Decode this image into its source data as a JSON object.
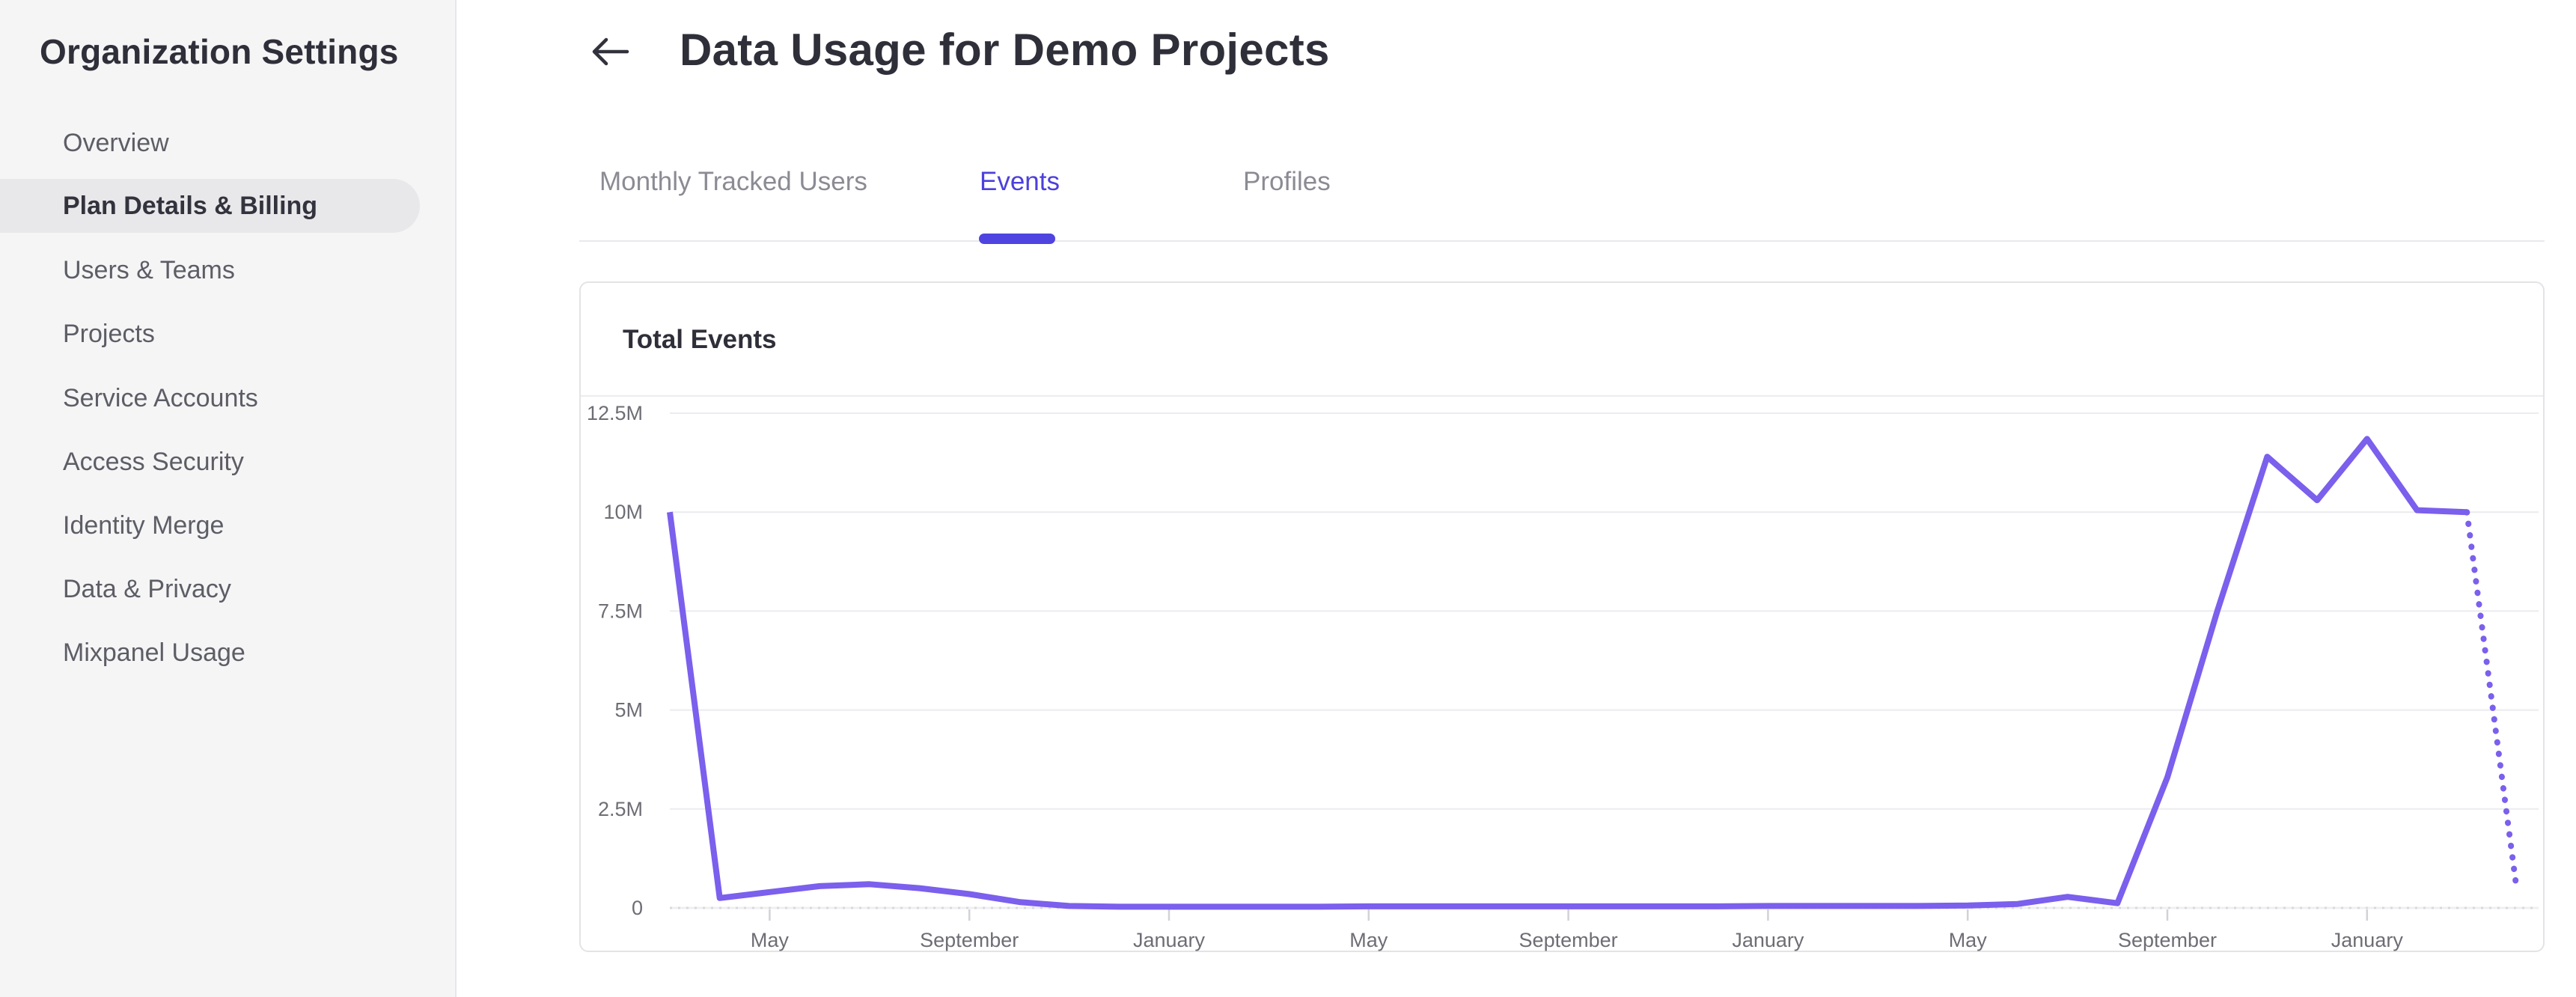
{
  "sidebar": {
    "title": "Organization Settings",
    "items": [
      {
        "label": "Overview",
        "active": false
      },
      {
        "label": "Plan Details & Billing",
        "active": true
      },
      {
        "label": "Users & Teams",
        "active": false
      },
      {
        "label": "Projects",
        "active": false
      },
      {
        "label": "Service Accounts",
        "active": false
      },
      {
        "label": "Access Security",
        "active": false
      },
      {
        "label": "Identity Merge",
        "active": false
      },
      {
        "label": "Data & Privacy",
        "active": false
      },
      {
        "label": "Mixpanel Usage",
        "active": false
      }
    ]
  },
  "header": {
    "title": "Data Usage for Demo Projects"
  },
  "tabs": {
    "items": [
      {
        "label": "Monthly Tracked Users",
        "active": false
      },
      {
        "label": "Events",
        "active": true
      },
      {
        "label": "Profiles",
        "active": false
      }
    ]
  },
  "card": {
    "title": "Total Events"
  },
  "colors": {
    "line": "#7b5fed",
    "accent": "#4f44e0",
    "grid": "#ececef",
    "axis": "#d9d9dd",
    "tick": "#d2d2d7",
    "axis_label": "#6d6d75"
  },
  "chart_data": {
    "type": "line",
    "title": "Total Events",
    "xlabel": "",
    "ylabel": "",
    "legend": "none",
    "grid": "horizontal",
    "ylim_millions": [
      0,
      12.5
    ],
    "y_tick_labels": [
      "12.5M",
      "10M",
      "7.5M",
      "5M",
      "2.5M",
      "0"
    ],
    "y_tick_values_millions": [
      12.5,
      10,
      7.5,
      5,
      2.5,
      0
    ],
    "x_tick_labels": [
      "May",
      "September",
      "January",
      "May",
      "September",
      "January",
      "May",
      "September",
      "January"
    ],
    "x_tick_month_indices": [
      2,
      6,
      10,
      14,
      18,
      22,
      26,
      30,
      34
    ],
    "x_granularity": "monthly, first point is March of year 1",
    "series": [
      {
        "name": "Total Events",
        "values_millions": [
          10,
          0.25,
          0.4,
          0.55,
          0.6,
          0.5,
          0.35,
          0.15,
          0.05,
          0.03,
          0.03,
          0.03,
          0.03,
          0.03,
          0.04,
          0.04,
          0.04,
          0.04,
          0.04,
          0.04,
          0.04,
          0.04,
          0.05,
          0.05,
          0.05,
          0.05,
          0.06,
          0.1,
          0.28,
          0.12,
          3.3,
          7.5,
          11.4,
          10.3,
          11.85,
          10.05,
          10.0,
          0.45
        ],
        "dotted_from_index": 36,
        "note_dotted": "final segment (incomplete month) drawn as dotted projection"
      }
    ]
  }
}
